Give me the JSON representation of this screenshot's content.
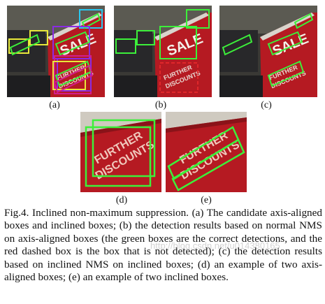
{
  "figure": {
    "panels": [
      {
        "id": "a",
        "label": "(a)"
      },
      {
        "id": "b",
        "label": "(b)"
      },
      {
        "id": "c",
        "label": "(c)"
      },
      {
        "id": "d",
        "label": "(d)"
      },
      {
        "id": "e",
        "label": "(e)"
      }
    ],
    "scene_text": {
      "sale": "SALE",
      "further": "FURTHER",
      "discounts": "DISCOUNTS"
    },
    "colors": {
      "sign_red": "#b51a22",
      "box_green": "#3cf03a",
      "box_cyan": "#29c8f0",
      "box_purple": "#8a2be2",
      "box_magenta": "#d21d8c",
      "box_yellow": "#e8e83a"
    }
  },
  "caption": {
    "text": "Fig.4. Inclined non-maximum suppression. (a) The candidate axis-aligned boxes and inclined boxes; (b) the detection results based on normal NMS on axis-aligned boxes (the green boxes are the correct detections, and the red dashed box is the box that is not detected); (c) the detection results based on inclined NMS on inclined boxes; (d) an example of two axis-aligned boxes; (e) an example of two inclined boxes."
  },
  "watermark": {
    "text": "http://blog.csdn.net/u014380165"
  }
}
